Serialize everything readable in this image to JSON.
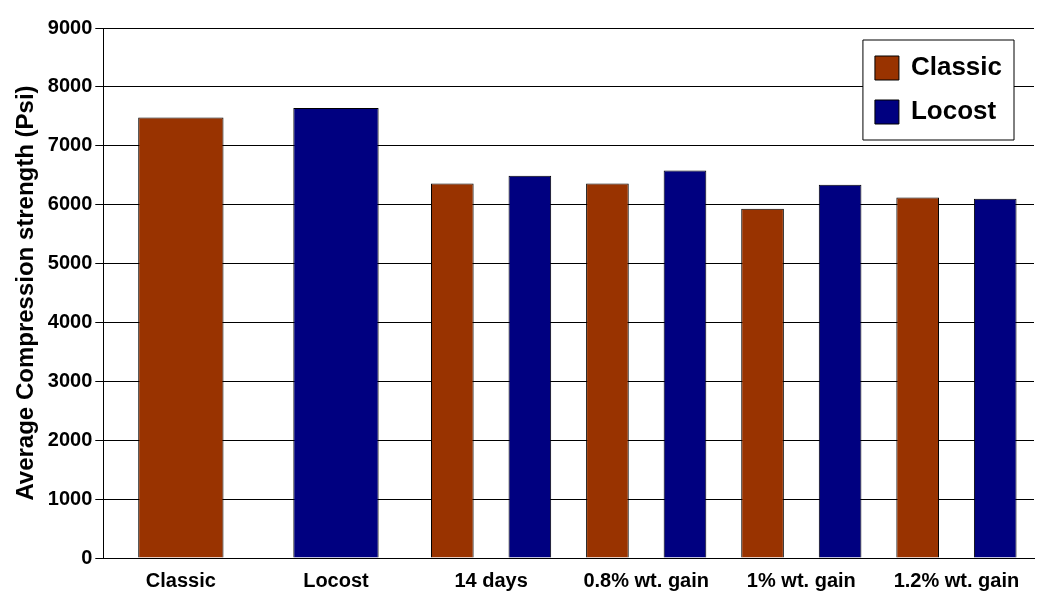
{
  "chart_data": {
    "type": "bar",
    "ylabel": "Average Compression strength (Psi)",
    "categories": [
      "Classic",
      "Locost",
      "14 days",
      "0.8% wt. gain",
      "1% wt. gain",
      "1.2% wt. gain"
    ],
    "series": [
      {
        "name": "Classic",
        "color": "#993300",
        "values": [
          7480,
          null,
          6360,
          6360,
          5930,
          6120
        ]
      },
      {
        "name": "Locost",
        "color": "#000080",
        "values": [
          null,
          7640,
          6490,
          6580,
          6340,
          6100
        ]
      }
    ],
    "ylim": [
      0,
      9000
    ],
    "yticks": [
      0,
      1000,
      2000,
      3000,
      4000,
      5000,
      6000,
      7000,
      8000,
      9000
    ],
    "grid": "y",
    "legend": "top right"
  }
}
